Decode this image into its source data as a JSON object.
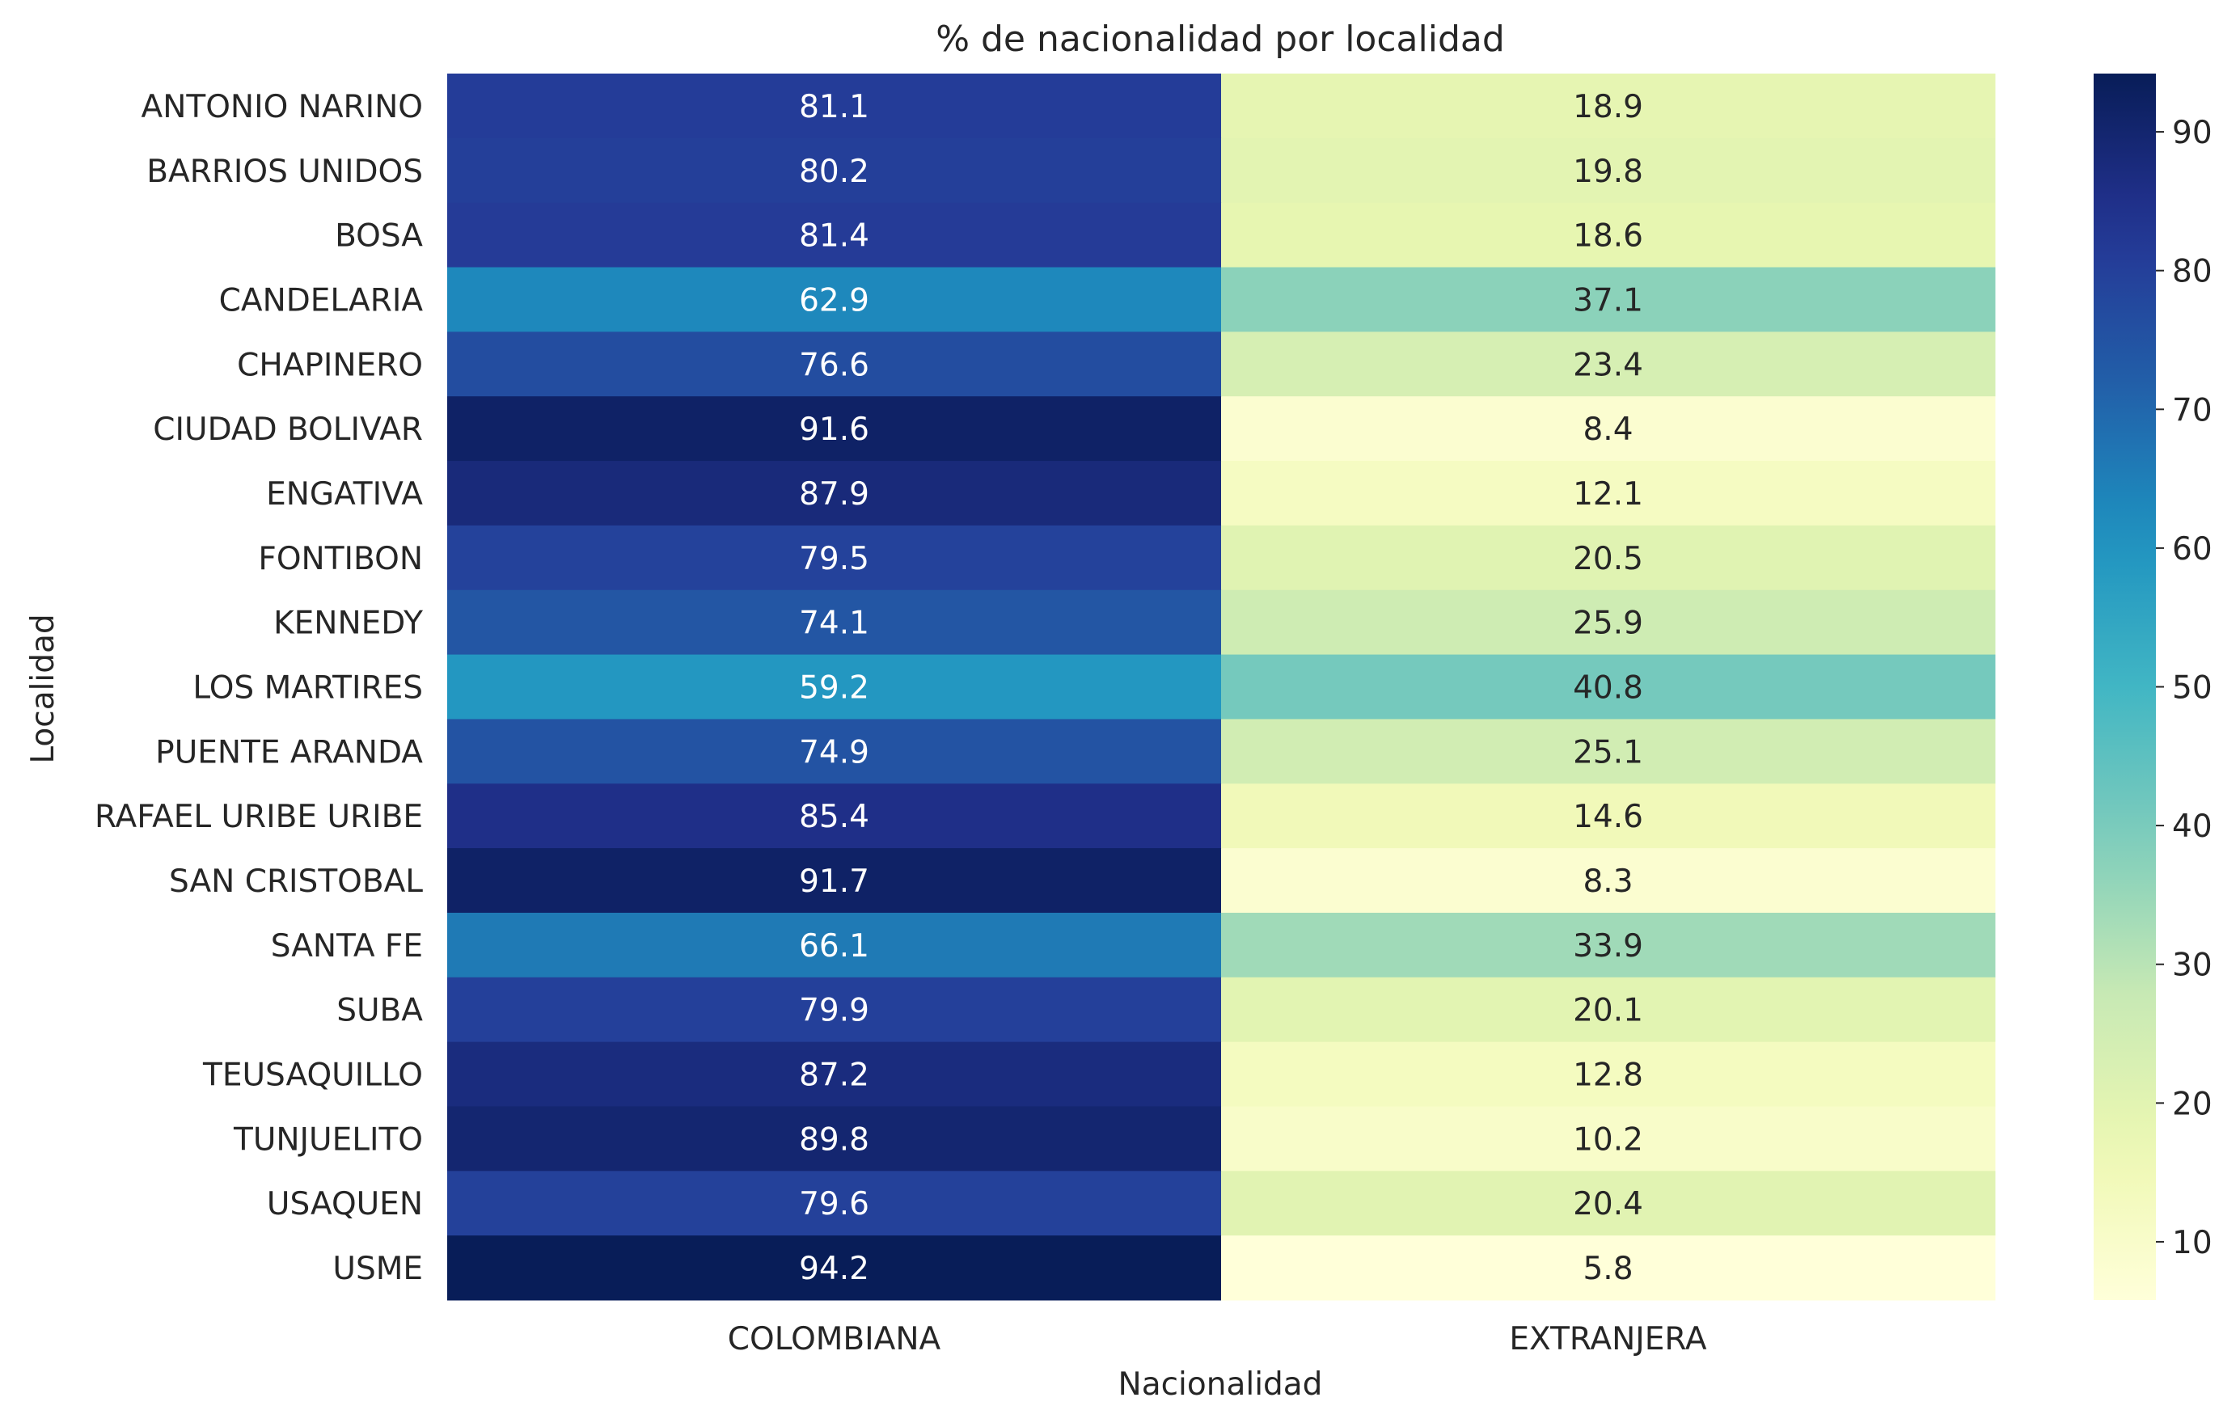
{
  "chart_data": {
    "type": "heatmap",
    "title": "% de nacionalidad por localidad",
    "xlabel": "Nacionalidad",
    "ylabel": "Localidad",
    "x": [
      "COLOMBIANA",
      "EXTRANJERA"
    ],
    "y": [
      "ANTONIO NARINO",
      "BARRIOS UNIDOS",
      "BOSA",
      "CANDELARIA",
      "CHAPINERO",
      "CIUDAD BOLIVAR",
      "ENGATIVA",
      "FONTIBON",
      "KENNEDY",
      "LOS MARTIRES",
      "PUENTE ARANDA",
      "RAFAEL URIBE URIBE",
      "SAN CRISTOBAL",
      "SANTA FE",
      "SUBA",
      "TEUSAQUILLO",
      "TUNJUELITO",
      "USAQUEN",
      "USME"
    ],
    "values": [
      [
        81.1,
        18.9
      ],
      [
        80.2,
        19.8
      ],
      [
        81.4,
        18.6
      ],
      [
        62.9,
        37.1
      ],
      [
        76.6,
        23.4
      ],
      [
        91.6,
        8.4
      ],
      [
        87.9,
        12.1
      ],
      [
        79.5,
        20.5
      ],
      [
        74.1,
        25.9
      ],
      [
        59.2,
        40.8
      ],
      [
        74.9,
        25.1
      ],
      [
        85.4,
        14.6
      ],
      [
        91.7,
        8.3
      ],
      [
        66.1,
        33.9
      ],
      [
        79.9,
        20.1
      ],
      [
        87.2,
        12.8
      ],
      [
        89.8,
        10.2
      ],
      [
        79.6,
        20.4
      ],
      [
        94.2,
        5.8
      ]
    ],
    "colormap": "YlGnBu",
    "colorbar": {
      "range": [
        5.8,
        94.2
      ],
      "ticks": [
        10,
        20,
        30,
        40,
        50,
        60,
        70,
        80,
        90
      ]
    },
    "annotations": true,
    "grid": false
  }
}
